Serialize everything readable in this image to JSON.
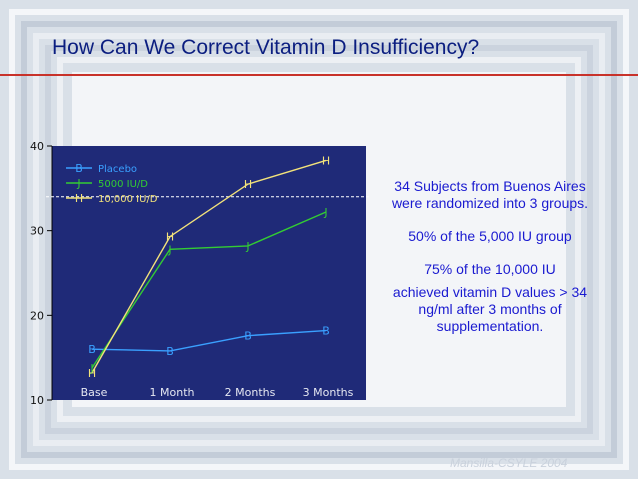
{
  "slide": {
    "title": "How Can We Correct Vitamin D Insufficiency?",
    "notes": [
      "34 Subjects from Buenos Aires were randomized into 3 groups.",
      "50% of the 5,000 IU group",
      "75% of the 10,000 IU",
      "achieved vitamin D values > 34 ng/ml after 3 months of supplementation."
    ],
    "source": "Mansilla-CSYLE 2004"
  },
  "colors": {
    "plot_bg": "#1f2a78",
    "title": "#0b1e80",
    "rule": "#c8322a",
    "notes": "#1a1ad0"
  },
  "chart_data": {
    "type": "line",
    "title": "",
    "xlabel": "",
    "ylabel": "",
    "categories": [
      "Base",
      "1 Month",
      "2 Months",
      "3 Months"
    ],
    "ylim": [
      10,
      40
    ],
    "yticks": [
      "10",
      "20",
      "30",
      "40"
    ],
    "threshold": 34,
    "series": [
      {
        "name": "Placebo",
        "marker": "B",
        "color": "#3aa0ff",
        "values": [
          16,
          15.8,
          17.6,
          18.2
        ]
      },
      {
        "name": "5000 IU/D",
        "marker": "J",
        "color": "#33cc33",
        "values": [
          13.8,
          27.8,
          28.2,
          32.2
        ]
      },
      {
        "name": "10,000 IU/D",
        "marker": "H",
        "color": "#f2e27a",
        "values": [
          13.2,
          29.3,
          35.5,
          38.3
        ]
      }
    ]
  }
}
